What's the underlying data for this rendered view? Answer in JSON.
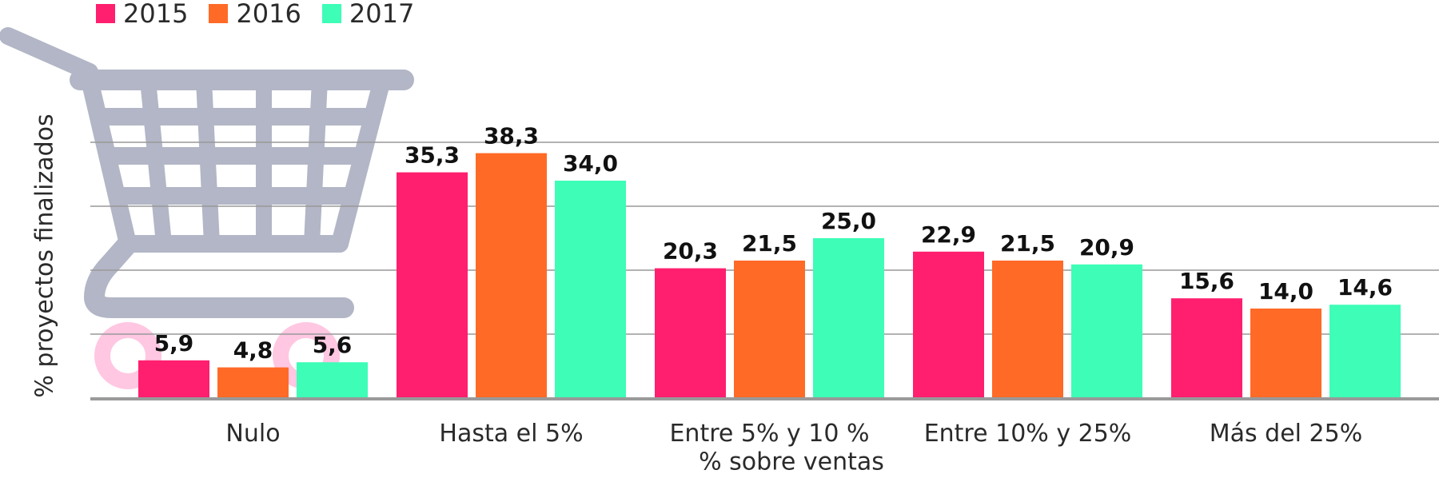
{
  "chart_data": {
    "type": "bar",
    "categories": [
      "Nulo",
      "Hasta el 5%",
      "Entre 5% y 10 %",
      "Entre 10% y 25%",
      "Más del 25%"
    ],
    "series": [
      {
        "name": "2015",
        "values": [
          5.9,
          35.3,
          20.3,
          22.9,
          15.6
        ],
        "color": "#ff1f6e"
      },
      {
        "name": "2016",
        "values": [
          4.8,
          38.3,
          21.5,
          21.5,
          14.0
        ],
        "color": "#ff6a27"
      },
      {
        "name": "2017",
        "values": [
          5.6,
          34.0,
          25.0,
          20.9,
          14.6
        ],
        "color": "#3dfdb7"
      }
    ],
    "value_labels": [
      [
        "5,9",
        "35,3",
        "20,3",
        "22,9",
        "15,6"
      ],
      [
        "4,8",
        "38,3",
        "21,5",
        "21,5",
        "14,0"
      ],
      [
        "5,6",
        "34,0",
        "25,0",
        "20,9",
        "14,6"
      ]
    ],
    "xlabel": "% sobre ventas",
    "ylabel": "% proyectos finalizados",
    "ylim": [
      0,
      40
    ],
    "grid": true,
    "legend_position": "top-left",
    "decoration_icon": "shopping-cart-icon",
    "colors": {
      "gridline": "#999999",
      "axis": "#9a9a9a",
      "cart": "#b2b6c6",
      "wheel": "#ffc7e2",
      "text": "#2a2a2a"
    }
  }
}
